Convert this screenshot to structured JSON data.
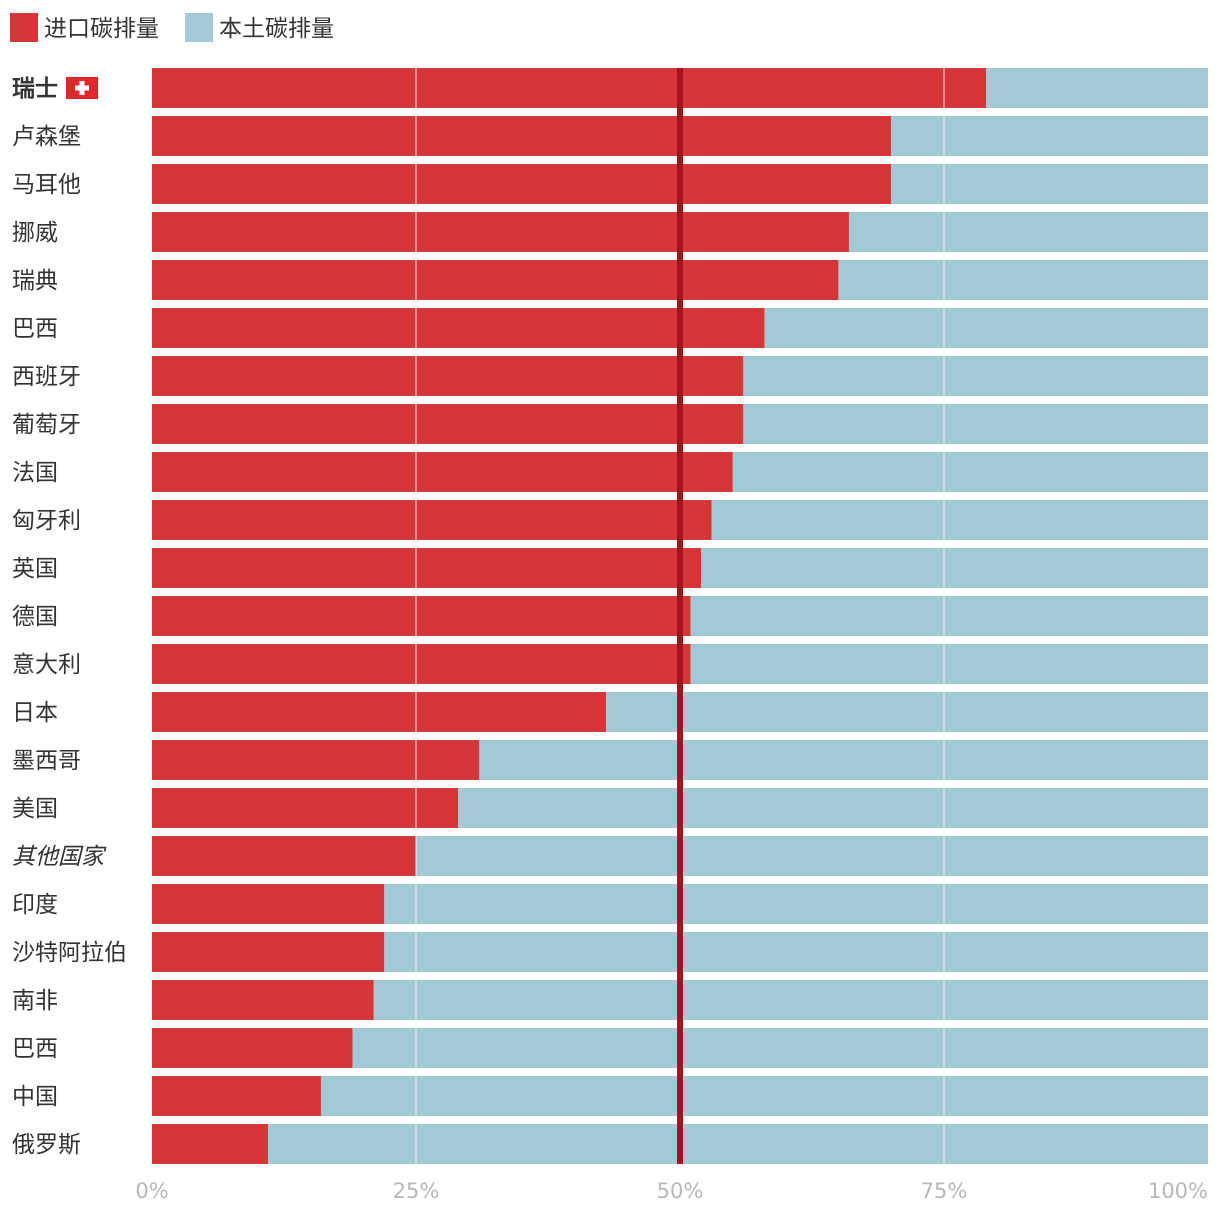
{
  "chart_data": {
    "type": "bar",
    "orientation": "horizontal",
    "stacked": "percent",
    "legend_position": "top-left",
    "series": [
      {
        "name": "进口碳排量",
        "color": "#d63638",
        "values": [
          79,
          70,
          70,
          66,
          65,
          58,
          56,
          56,
          55,
          53,
          52,
          51,
          51,
          43,
          31,
          29,
          25,
          22,
          22,
          21,
          19,
          16,
          11
        ]
      },
      {
        "name": "本土碳排量",
        "color": "#a1c9d6",
        "values": [
          21,
          30,
          30,
          34,
          35,
          42,
          44,
          44,
          45,
          47,
          48,
          49,
          49,
          57,
          69,
          71,
          75,
          78,
          78,
          79,
          81,
          84,
          89
        ]
      }
    ],
    "categories": [
      "瑞士",
      "卢森堡",
      "马耳他",
      "挪威",
      "瑞典",
      "巴西",
      "西班牙",
      "葡萄牙",
      "法国",
      "匈牙利",
      "英国",
      "德国",
      "意大利",
      "日本",
      "墨西哥",
      "美国",
      "其他国家",
      "印度",
      "沙特阿拉伯",
      "南非",
      "巴西",
      "中国",
      "俄罗斯"
    ],
    "highlight_category": "瑞士",
    "italic_category": "其他国家",
    "xticks": [
      "0%",
      "25%",
      "50%",
      "75%",
      "100%"
    ],
    "xlim": [
      0,
      100
    ],
    "reference_line": {
      "value": 50,
      "color": "#a50f1e"
    },
    "grid": true
  }
}
